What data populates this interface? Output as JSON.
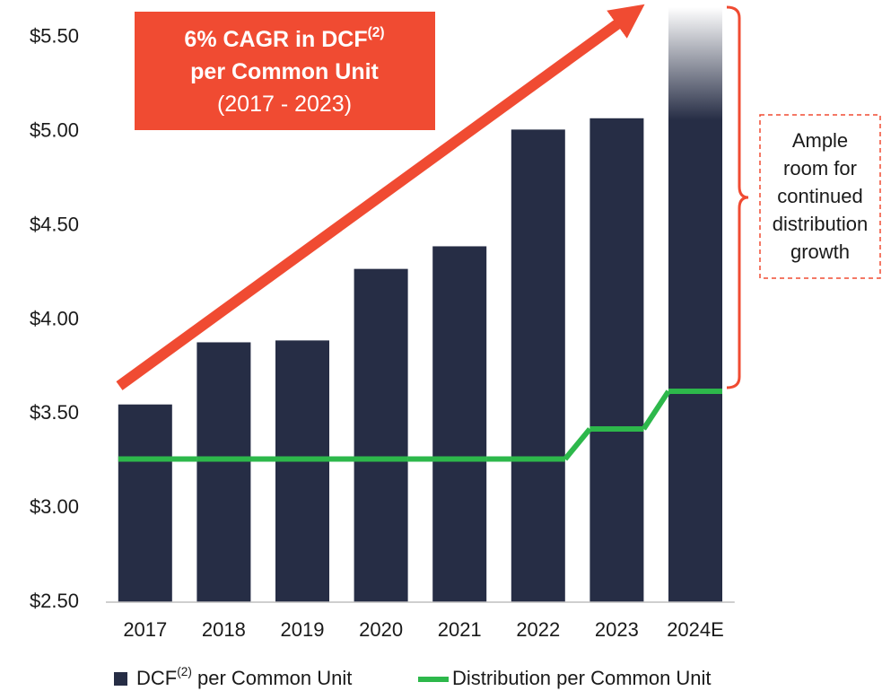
{
  "chart_data": {
    "type": "bar",
    "categories": [
      "2017",
      "2018",
      "2019",
      "2020",
      "2021",
      "2022",
      "2023",
      "2024E"
    ],
    "series": [
      {
        "name": "DCF(2) per Common Unit",
        "color": "#262d45",
        "values": [
          3.55,
          3.88,
          3.89,
          4.27,
          4.39,
          5.01,
          5.07,
          5.66
        ],
        "fade_last": true
      },
      {
        "name": "Distribution per Common Unit",
        "type": "step-line",
        "color": "#2db84b",
        "values": [
          3.26,
          3.26,
          3.26,
          3.26,
          3.26,
          3.26,
          3.42,
          3.62
        ]
      }
    ],
    "ylim": [
      2.5,
      5.66
    ],
    "yticks": [
      {
        "value": 2.5,
        "label": "$2.50"
      },
      {
        "value": 3.0,
        "label": "$3.00"
      },
      {
        "value": 3.5,
        "label": "$3.50"
      },
      {
        "value": 4.0,
        "label": "$4.00"
      },
      {
        "value": 4.5,
        "label": "$4.50"
      },
      {
        "value": 5.0,
        "label": "$5.00"
      },
      {
        "value": 5.5,
        "label": "$5.50"
      }
    ],
    "legend": "bottom",
    "callout": {
      "lines": [
        "6% CAGR in DCF(2)",
        "per Common Unit",
        "(2017 - 2023)"
      ],
      "color": "#f04b32"
    },
    "note": {
      "lines": [
        "Ample",
        "room for",
        "continued",
        "distribution",
        "growth"
      ]
    }
  }
}
